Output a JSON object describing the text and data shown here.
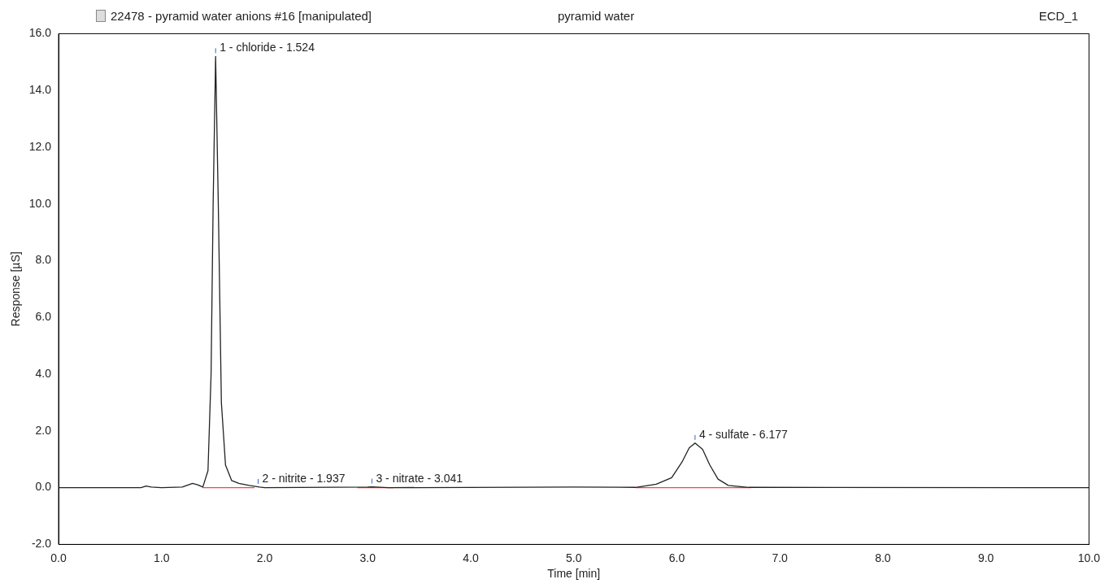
{
  "chart_data": {
    "type": "line",
    "title": "22478 - pyramid water anions #16 [manipulated]",
    "subtitle": "pyramid water",
    "xlabel": "Time [min]",
    "ylabel": "Response [µS]",
    "series": [
      {
        "color": "#222222",
        "x": [
          0,
          0.8,
          0.85,
          0.9,
          1.0,
          1.2,
          1.3,
          1.35,
          1.4,
          1.45,
          1.48,
          1.5,
          1.524,
          1.55,
          1.58,
          1.62,
          1.68,
          1.75,
          1.85,
          1.95,
          2.0,
          3.0,
          3.04,
          3.2,
          5.0,
          5.6,
          5.8,
          5.95,
          6.05,
          6.12,
          6.177,
          6.25,
          6.32,
          6.4,
          6.5,
          6.7,
          10
        ],
        "values": [
          0,
          0,
          0.06,
          0.02,
          0,
          0.02,
          0.15,
          0.1,
          0.02,
          0.6,
          4,
          10,
          15.2,
          10,
          3,
          0.8,
          0.25,
          0.15,
          0.08,
          0.02,
          0,
          0.02,
          0.03,
          0,
          0.02,
          0.01,
          0.12,
          0.35,
          0.9,
          1.4,
          1.57,
          1.35,
          0.8,
          0.3,
          0.08,
          0.01,
          0
        ]
      },
      {
        "color": "#ff4040",
        "x": [
          1.4,
          1.9,
          1.91,
          2.9,
          3.25,
          3.26,
          5.6,
          6.72
        ],
        "values": [
          0,
          0,
          null,
          0,
          0,
          null,
          0,
          0
        ]
      }
    ],
    "annotations": [
      {
        "text": "1 - chloride - 1.524",
        "x": 1.524,
        "y": 15.2
      },
      {
        "text": "2 - nitrite - 1.937",
        "x": 1.937,
        "y": 0.02
      },
      {
        "text": "3 - nitrate - 3.041",
        "x": 3.041,
        "y": 0.03
      },
      {
        "text": "4 - sulfate - 6.177",
        "x": 6.177,
        "y": 1.57
      },
      "ECD_1"
    ],
    "xlim": [
      0,
      10
    ],
    "xticks": [
      {
        "value": 0,
        "label": "0.0"
      },
      {
        "value": 1,
        "label": "1.0"
      },
      {
        "value": 2,
        "label": "2.0"
      },
      {
        "value": 3,
        "label": "3.0"
      },
      {
        "value": 4,
        "label": "4.0"
      },
      {
        "value": 5,
        "label": "5.0"
      },
      {
        "value": 6,
        "label": "6.0"
      },
      {
        "value": 7,
        "label": "7.0"
      },
      {
        "value": 8,
        "label": "8.0"
      },
      {
        "value": 9,
        "label": "9.0"
      },
      {
        "value": 10,
        "label": "10.0"
      }
    ],
    "ylim": [
      -2,
      16
    ],
    "yticks": [
      {
        "value": -2,
        "label": "-2.0"
      },
      {
        "value": 0,
        "label": "0.0"
      },
      {
        "value": 2,
        "label": "2.0"
      },
      {
        "value": 4,
        "label": "4.0"
      },
      {
        "value": 6,
        "label": "6.0"
      },
      {
        "value": 8,
        "label": "8.0"
      },
      {
        "value": 10,
        "label": "10.0"
      },
      {
        "value": 12,
        "label": "12.0"
      },
      {
        "value": 14,
        "label": "14.0"
      },
      {
        "value": 16,
        "label": "16.0"
      }
    ],
    "grid": false,
    "legend": false,
    "marker": "none",
    "line_style": "solid"
  }
}
